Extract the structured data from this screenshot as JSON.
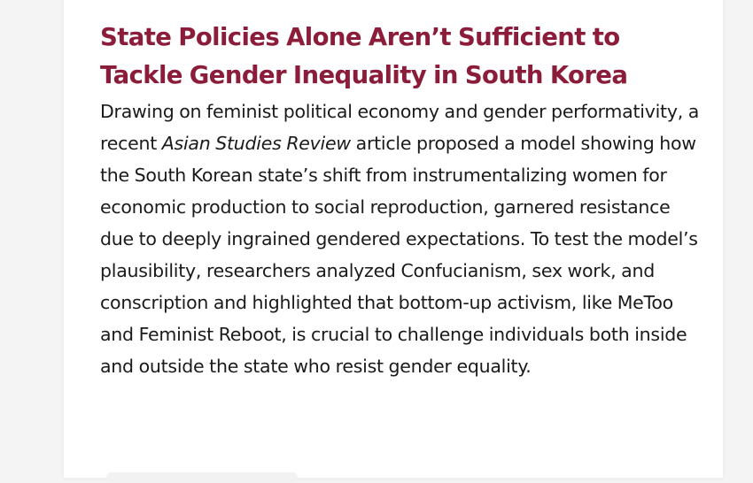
{
  "article": {
    "title": "State Policies Alone Aren’t Sufficient to Tackle Gender Inequality in South Korea",
    "summary": {
      "part1": "Drawing on feminist political economy and gender performativity, a recent ",
      "journal": "Asian Studies Review",
      "part2": " article proposed a model showing how the South Korean state’s shift from instrumentalizing women for economic production to social reproduction, garnered resistance due to deeply ingrained gendered expectations. To test the model’s plausibility, researchers analyzed Confucianism, sex work, and conscription and highlighted that bottom-up activism, like MeToo and Feminist Reboot, is crucial to challenge individuals both inside and outside the state who resist gender equality."
    }
  },
  "colors": {
    "title": "#8b1c3a",
    "text": "#1a1a1a",
    "background": "#f4f4f4",
    "card": "#ffffff"
  }
}
